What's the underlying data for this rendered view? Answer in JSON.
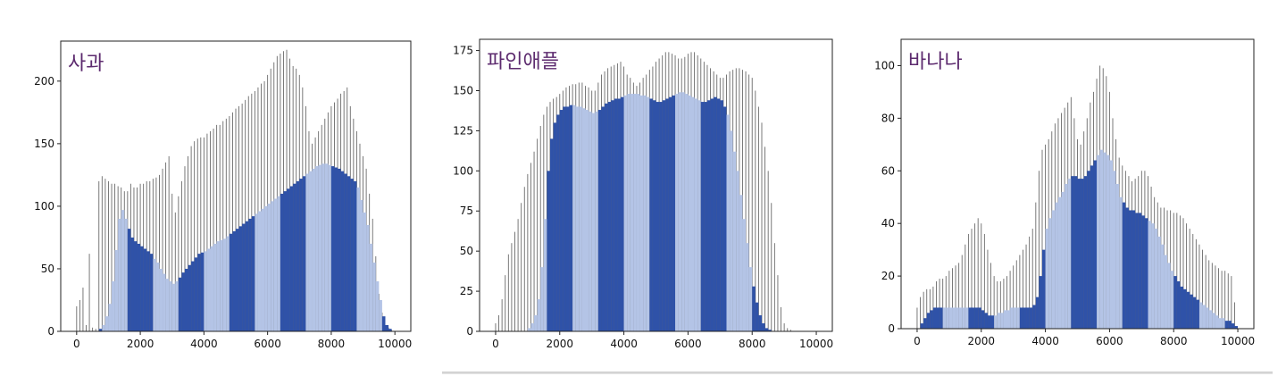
{
  "chart_data": [
    {
      "type": "bar",
      "title": "사과",
      "x": [
        0,
        100,
        200,
        300,
        400,
        500,
        600,
        700,
        800,
        900,
        1000,
        1100,
        1200,
        1300,
        1400,
        1500,
        1600,
        1700,
        1800,
        1900,
        2000,
        2100,
        2200,
        2300,
        2400,
        2500,
        2600,
        2700,
        2800,
        2900,
        3000,
        3100,
        3200,
        3300,
        3400,
        3500,
        3600,
        3700,
        3800,
        3900,
        4000,
        4100,
        4200,
        4300,
        4400,
        4500,
        4600,
        4700,
        4800,
        4900,
        5000,
        5100,
        5200,
        5300,
        5400,
        5500,
        5600,
        5700,
        5800,
        5900,
        6000,
        6100,
        6200,
        6300,
        6400,
        6500,
        6600,
        6700,
        6800,
        6900,
        7000,
        7100,
        7200,
        7300,
        7400,
        7500,
        7600,
        7700,
        7800,
        7900,
        8000,
        8100,
        8200,
        8300,
        8400,
        8500,
        8600,
        8700,
        8800,
        8900,
        9000,
        9100,
        9200,
        9300,
        9400,
        9500,
        9600,
        9700,
        9800,
        9900
      ],
      "series": [
        {
          "values": [
            20,
            25,
            35,
            5,
            62,
            3,
            2,
            120,
            124,
            122,
            120,
            118,
            118,
            116,
            115,
            112,
            112,
            118,
            115,
            115,
            118,
            118,
            120,
            120,
            122,
            123,
            125,
            130,
            135,
            140,
            110,
            95,
            108,
            120,
            132,
            140,
            148,
            152,
            154,
            155,
            155,
            158,
            160,
            162,
            165,
            165,
            168,
            170,
            172,
            175,
            178,
            180,
            182,
            185,
            188,
            190,
            192,
            195,
            198,
            200,
            205,
            210,
            215,
            220,
            222,
            224,
            225,
            218,
            212,
            210,
            205,
            195,
            180,
            160,
            150,
            155,
            160,
            165,
            170,
            175,
            180,
            183,
            186,
            190,
            192,
            195,
            180,
            170,
            160,
            150,
            140,
            130,
            110,
            90,
            60,
            30,
            15,
            5,
            3,
            1
          ]
        },
        {
          "values": [
            0,
            0,
            0,
            0,
            0,
            0,
            0,
            2,
            5,
            12,
            22,
            40,
            65,
            90,
            97,
            90,
            82,
            75,
            72,
            70,
            68,
            66,
            64,
            62,
            58,
            55,
            50,
            46,
            42,
            40,
            38,
            40,
            43,
            47,
            50,
            53,
            56,
            59,
            62,
            63,
            64,
            66,
            68,
            70,
            72,
            73,
            74,
            76,
            78,
            80,
            82,
            84,
            86,
            88,
            90,
            92,
            94,
            96,
            98,
            100,
            102,
            104,
            106,
            108,
            110,
            112,
            114,
            116,
            118,
            120,
            122,
            124,
            126,
            128,
            130,
            132,
            133,
            134,
            134,
            133,
            132,
            131,
            130,
            128,
            126,
            124,
            122,
            120,
            115,
            105,
            95,
            85,
            70,
            55,
            40,
            25,
            12,
            5,
            2,
            0
          ]
        }
      ],
      "xticks": [
        0,
        2000,
        4000,
        6000,
        8000,
        10000
      ],
      "yticks": [
        0,
        50,
        100,
        150,
        200
      ],
      "xlim": [
        -500,
        10500
      ],
      "ylim": [
        0,
        232
      ],
      "colors": {
        "outline": "#6a6a6a",
        "fill": "#2f52a8",
        "highlight": "#b4c4e6"
      }
    },
    {
      "type": "bar",
      "title": "파인애플",
      "x": [
        0,
        100,
        200,
        300,
        400,
        500,
        600,
        700,
        800,
        900,
        1000,
        1100,
        1200,
        1300,
        1400,
        1500,
        1600,
        1700,
        1800,
        1900,
        2000,
        2100,
        2200,
        2300,
        2400,
        2500,
        2600,
        2700,
        2800,
        2900,
        3000,
        3100,
        3200,
        3300,
        3400,
        3500,
        3600,
        3700,
        3800,
        3900,
        4000,
        4100,
        4200,
        4300,
        4400,
        4500,
        4600,
        4700,
        4800,
        4900,
        5000,
        5100,
        5200,
        5300,
        5400,
        5500,
        5600,
        5700,
        5800,
        5900,
        6000,
        6100,
        6200,
        6300,
        6400,
        6500,
        6600,
        6700,
        6800,
        6900,
        7000,
        7100,
        7200,
        7300,
        7400,
        7500,
        7600,
        7700,
        7800,
        7900,
        8000,
        8100,
        8200,
        8300,
        8400,
        8500,
        8600,
        8700,
        8800,
        8900,
        9000,
        9100,
        9200,
        9300,
        9400,
        9500,
        9600,
        9700,
        9800,
        9900
      ],
      "series": [
        {
          "values": [
            5,
            10,
            20,
            35,
            48,
            55,
            62,
            70,
            80,
            90,
            98,
            105,
            112,
            120,
            128,
            135,
            140,
            143,
            145,
            146,
            148,
            150,
            152,
            153,
            154,
            154,
            155,
            155,
            153,
            152,
            150,
            150,
            155,
            160,
            162,
            164,
            165,
            166,
            167,
            168,
            165,
            160,
            158,
            155,
            153,
            155,
            158,
            160,
            163,
            165,
            168,
            170,
            172,
            174,
            174,
            173,
            172,
            170,
            170,
            171,
            173,
            174,
            174,
            172,
            170,
            168,
            166,
            164,
            162,
            160,
            158,
            158,
            160,
            162,
            163,
            164,
            164,
            163,
            162,
            160,
            158,
            150,
            140,
            130,
            115,
            100,
            80,
            55,
            35,
            15,
            5,
            2,
            1,
            0,
            0,
            0,
            0,
            0,
            0,
            0
          ]
        },
        {
          "values": [
            0,
            0,
            0,
            0,
            0,
            0,
            0,
            0,
            0,
            0,
            2,
            5,
            10,
            20,
            40,
            70,
            100,
            120,
            130,
            135,
            138,
            140,
            140,
            141,
            141,
            140,
            140,
            139,
            138,
            137,
            136,
            137,
            138,
            140,
            142,
            143,
            144,
            145,
            145,
            146,
            147,
            148,
            148,
            148,
            148,
            147,
            147,
            146,
            145,
            144,
            143,
            143,
            144,
            145,
            146,
            147,
            148,
            149,
            149,
            148,
            147,
            146,
            145,
            144,
            143,
            143,
            144,
            145,
            146,
            145,
            144,
            140,
            135,
            125,
            112,
            100,
            85,
            70,
            55,
            40,
            28,
            18,
            10,
            5,
            2,
            1,
            0,
            0,
            0,
            0,
            0,
            0,
            0,
            0,
            0,
            0,
            0,
            0,
            0,
            0
          ]
        }
      ],
      "xticks": [
        0,
        2000,
        4000,
        6000,
        8000,
        10000
      ],
      "yticks": [
        0,
        25,
        50,
        75,
        100,
        125,
        150,
        175
      ],
      "xlim": [
        -500,
        10500
      ],
      "ylim": [
        0,
        182
      ],
      "colors": {
        "outline": "#6a6a6a",
        "fill": "#2f52a8",
        "highlight": "#b4c4e6"
      }
    },
    {
      "type": "bar",
      "title": "바나나",
      "x": [
        0,
        100,
        200,
        300,
        400,
        500,
        600,
        700,
        800,
        900,
        1000,
        1100,
        1200,
        1300,
        1400,
        1500,
        1600,
        1700,
        1800,
        1900,
        2000,
        2100,
        2200,
        2300,
        2400,
        2500,
        2600,
        2700,
        2800,
        2900,
        3000,
        3100,
        3200,
        3300,
        3400,
        3500,
        3600,
        3700,
        3800,
        3900,
        4000,
        4100,
        4200,
        4300,
        4400,
        4500,
        4600,
        4700,
        4800,
        4900,
        5000,
        5100,
        5200,
        5300,
        5400,
        5500,
        5600,
        5700,
        5800,
        5900,
        6000,
        6100,
        6200,
        6300,
        6400,
        6500,
        6600,
        6700,
        6800,
        6900,
        7000,
        7100,
        7200,
        7300,
        7400,
        7500,
        7600,
        7700,
        7800,
        7900,
        8000,
        8100,
        8200,
        8300,
        8400,
        8500,
        8600,
        8700,
        8800,
        8900,
        9000,
        9100,
        9200,
        9300,
        9400,
        9500,
        9600,
        9700,
        9800,
        9900
      ],
      "series": [
        {
          "values": [
            8,
            12,
            14,
            15,
            15,
            16,
            18,
            19,
            19,
            20,
            22,
            23,
            24,
            25,
            28,
            32,
            36,
            38,
            40,
            42,
            40,
            36,
            30,
            25,
            20,
            18,
            18,
            19,
            20,
            22,
            24,
            26,
            28,
            30,
            32,
            35,
            38,
            48,
            60,
            68,
            70,
            72,
            75,
            78,
            80,
            82,
            84,
            86,
            88,
            80,
            72,
            70,
            75,
            80,
            86,
            90,
            95,
            100,
            99,
            96,
            90,
            80,
            72,
            65,
            62,
            60,
            58,
            56,
            57,
            58,
            60,
            60,
            58,
            54,
            50,
            48,
            46,
            46,
            45,
            45,
            44,
            44,
            43,
            42,
            40,
            38,
            36,
            34,
            32,
            30,
            28,
            26,
            25,
            24,
            23,
            22,
            22,
            21,
            20,
            10
          ]
        },
        {
          "values": [
            0,
            2,
            4,
            6,
            7,
            8,
            8,
            8,
            8,
            8,
            8,
            8,
            8,
            8,
            8,
            8,
            8,
            8,
            8,
            8,
            7,
            6,
            5,
            5,
            5,
            6,
            6,
            7,
            7,
            8,
            8,
            8,
            8,
            8,
            8,
            8,
            9,
            12,
            20,
            30,
            38,
            42,
            45,
            48,
            50,
            52,
            55,
            57,
            58,
            58,
            57,
            57,
            58,
            60,
            62,
            64,
            66,
            68,
            67,
            66,
            64,
            60,
            55,
            50,
            48,
            46,
            45,
            45,
            44,
            44,
            43,
            42,
            41,
            40,
            38,
            35,
            32,
            28,
            25,
            22,
            20,
            18,
            16,
            15,
            14,
            13,
            12,
            11,
            10,
            9,
            8,
            7,
            6,
            5,
            4,
            4,
            3,
            3,
            2,
            1
          ]
        }
      ],
      "xticks": [
        0,
        2000,
        4000,
        6000,
        8000,
        10000
      ],
      "yticks": [
        0,
        20,
        40,
        60,
        80,
        100
      ],
      "xlim": [
        -500,
        10500
      ],
      "ylim": [
        0,
        110
      ],
      "colors": {
        "outline": "#6a6a6a",
        "fill": "#2f52a8",
        "highlight": "#b4c4e6"
      }
    }
  ]
}
